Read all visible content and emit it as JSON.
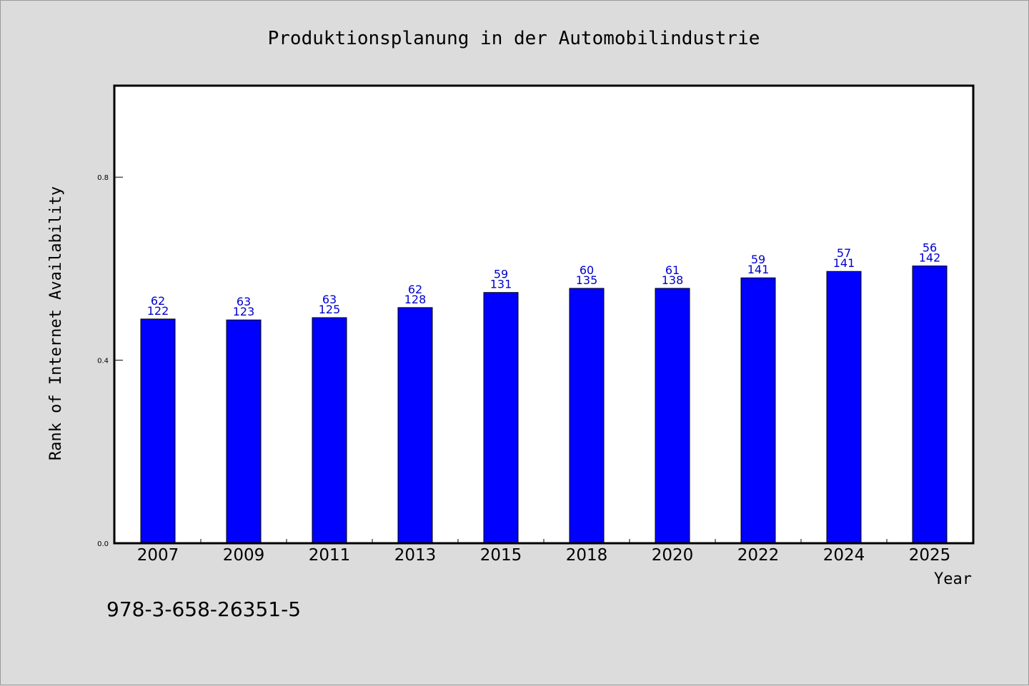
{
  "chart_data": {
    "type": "bar",
    "title": "Produktionsplanung in der Automobilindustrie",
    "xlabel": "Year",
    "ylabel": "Rank of Internet Availability",
    "categories": [
      "2007",
      "2009",
      "2011",
      "2013",
      "2015",
      "2018",
      "2020",
      "2022",
      "2024",
      "2025"
    ],
    "values": [
      0.49,
      0.488,
      0.493,
      0.515,
      0.548,
      0.557,
      0.557,
      0.58,
      0.594,
      0.606
    ],
    "bar_labels_top": [
      "62",
      "63",
      "63",
      "62",
      "59",
      "60",
      "61",
      "59",
      "57",
      "56"
    ],
    "bar_labels_bottom": [
      "122",
      "123",
      "125",
      "128",
      "131",
      "135",
      "138",
      "141",
      "141",
      "142"
    ],
    "yticks": [
      "0.0",
      "0.4",
      "0.8"
    ],
    "ytick_values": [
      0.0,
      0.4,
      0.8
    ],
    "ylim": [
      0,
      1.0
    ],
    "grid": false,
    "legend": "none",
    "colors": {
      "bar": "#0000ff",
      "bar_edge": "#000000",
      "data_label": "#0000cc",
      "plot_background": "#ffffff",
      "figure_background": "#dcdcdc"
    }
  },
  "footnote": "978-3-658-26351-5"
}
